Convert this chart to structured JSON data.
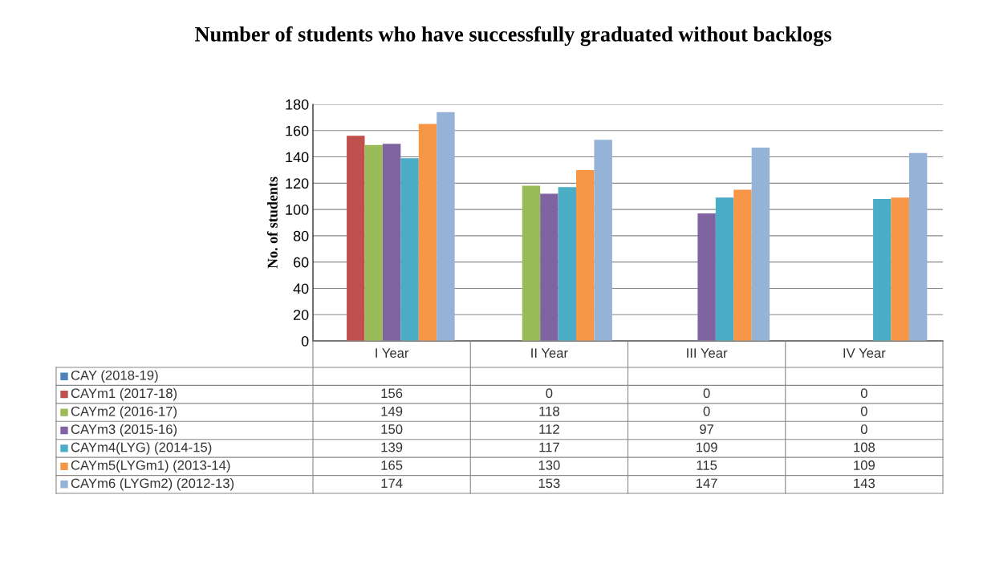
{
  "chart_data": {
    "type": "bar",
    "title": "Number of students who have successfully graduated without backlogs",
    "ylabel": "No. of students",
    "categories": [
      "I Year",
      "II Year",
      "III Year",
      "IV Year"
    ],
    "series": [
      {
        "name": "CAY (2018-19)",
        "color": "#4f81bd",
        "values": [
          null,
          null,
          null,
          null
        ]
      },
      {
        "name": "CAYm1 (2017-18)",
        "color": "#c0504d",
        "values": [
          156,
          0,
          0,
          0
        ]
      },
      {
        "name": "CAYm2 (2016-17)",
        "color": "#9bbb59",
        "values": [
          149,
          118,
          0,
          0
        ]
      },
      {
        "name": "CAYm3 (2015-16)",
        "color": "#8064a2",
        "values": [
          150,
          112,
          97,
          0
        ]
      },
      {
        "name": "CAYm4(LYG) (2014-15)",
        "color": "#4bacc6",
        "values": [
          139,
          117,
          109,
          108
        ]
      },
      {
        "name": "CAYm5(LYGm1) (2013-14)",
        "color": "#f79646",
        "values": [
          165,
          130,
          115,
          109
        ]
      },
      {
        "name": "CAYm6 (LYGm2) (2012-13)",
        "color": "#95b3d7",
        "values": [
          174,
          153,
          147,
          143
        ]
      }
    ],
    "ylim": [
      0,
      180
    ],
    "yticks": [
      0,
      20,
      40,
      60,
      80,
      100,
      120,
      140,
      160,
      180
    ],
    "grid": "y",
    "legend": "bottom",
    "data_labels": true
  }
}
